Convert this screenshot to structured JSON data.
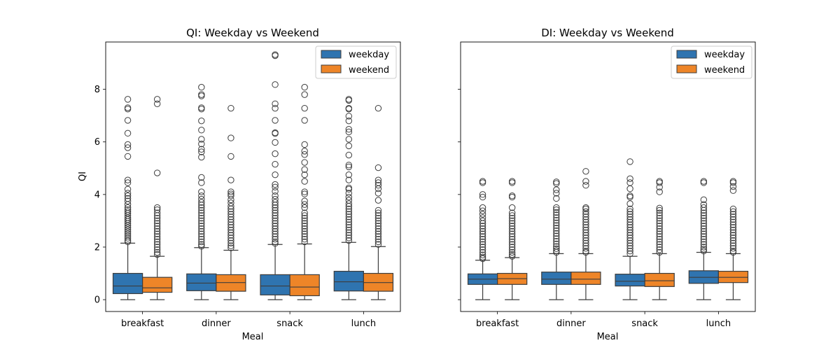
{
  "colors": {
    "weekday": "#2f74b0",
    "weekend": "#ee8528",
    "whisker": "#3d3d3d",
    "flier": "#3d3d3d"
  },
  "chart_data": [
    {
      "type": "box",
      "title": "QI: Weekday vs Weekend",
      "xlabel": "Meal",
      "ylabel": "QI",
      "ylim": [
        -0.45,
        9.8
      ],
      "yticks": [
        0,
        2,
        4,
        6,
        8
      ],
      "categories": [
        "breakfast",
        "dinner",
        "snack",
        "lunch"
      ],
      "legend": {
        "placement": "top-right",
        "entries": [
          "weekday",
          "weekend"
        ]
      },
      "series": [
        {
          "name": "weekday",
          "boxes": [
            {
              "min": 0.0,
              "q1": 0.23,
              "median": 0.52,
              "q3": 1.0,
              "whisker_high": 2.15,
              "fliers": [
                7.62,
                7.3,
                7.25,
                6.82,
                6.33,
                5.9,
                5.78,
                5.45,
                4.55,
                4.45,
                4.2,
                4.05,
                3.95,
                3.85,
                3.75,
                3.62,
                3.5,
                3.42,
                3.35,
                3.28,
                3.2,
                3.12,
                3.05,
                2.98,
                2.9,
                2.82,
                2.74,
                2.66,
                2.58,
                2.5,
                2.42,
                2.34,
                2.26,
                2.2
              ]
            },
            {
              "min": 0.0,
              "q1": 0.34,
              "median": 0.63,
              "q3": 0.98,
              "whisker_high": 1.98,
              "fliers": [
                8.08,
                7.8,
                7.75,
                7.3,
                7.25,
                6.8,
                6.45,
                6.1,
                5.92,
                5.72,
                5.62,
                5.42,
                4.65,
                4.45,
                4.1,
                3.95,
                3.82,
                3.7,
                3.6,
                3.5,
                3.4,
                3.3,
                3.2,
                3.1,
                3.0,
                2.9,
                2.8,
                2.7,
                2.6,
                2.5,
                2.4,
                2.3,
                2.2,
                2.1,
                2.03
              ]
            },
            {
              "min": 0.0,
              "q1": 0.18,
              "median": 0.52,
              "q3": 0.95,
              "whisker_high": 2.1,
              "fliers": [
                9.32,
                9.28,
                8.18,
                7.45,
                7.28,
                6.82,
                6.35,
                6.32,
                5.98,
                5.55,
                5.15,
                4.75,
                4.38,
                4.28,
                4.12,
                3.95,
                3.82,
                3.7,
                3.6,
                3.5,
                3.4,
                3.3,
                3.2,
                3.1,
                3.0,
                2.9,
                2.8,
                2.7,
                2.6,
                2.5,
                2.4,
                2.3,
                2.2,
                2.14
              ]
            },
            {
              "min": 0.0,
              "q1": 0.33,
              "median": 0.68,
              "q3": 1.08,
              "whisker_high": 2.18,
              "fliers": [
                7.62,
                7.58,
                7.28,
                7.25,
                6.98,
                6.8,
                6.48,
                6.38,
                6.1,
                5.85,
                5.5,
                5.12,
                5.05,
                4.75,
                4.55,
                4.25,
                4.2,
                4.05,
                3.9,
                3.78,
                3.65,
                3.55,
                3.45,
                3.35,
                3.25,
                3.15,
                3.05,
                2.95,
                2.85,
                2.75,
                2.65,
                2.55,
                2.45,
                2.35,
                2.25
              ]
            }
          ]
        },
        {
          "name": "weekend",
          "boxes": [
            {
              "min": 0.0,
              "q1": 0.28,
              "median": 0.45,
              "q3": 0.85,
              "whisker_high": 1.65,
              "fliers": [
                7.62,
                7.45,
                4.82,
                3.5,
                3.42,
                3.3,
                3.2,
                3.1,
                3.0,
                2.9,
                2.8,
                2.7,
                2.6,
                2.5,
                2.4,
                2.3,
                2.2,
                2.1,
                2.0,
                1.9,
                1.8,
                1.72
              ]
            },
            {
              "min": 0.0,
              "q1": 0.32,
              "median": 0.65,
              "q3": 0.95,
              "whisker_high": 1.88,
              "fliers": [
                7.28,
                6.15,
                5.45,
                4.55,
                4.1,
                4.02,
                3.95,
                3.8,
                3.68,
                3.55,
                3.45,
                3.35,
                3.25,
                3.15,
                3.05,
                2.95,
                2.85,
                2.75,
                2.65,
                2.55,
                2.45,
                2.35,
                2.25,
                2.15,
                2.05,
                1.97
              ]
            },
            {
              "min": 0.0,
              "q1": 0.15,
              "median": 0.48,
              "q3": 0.95,
              "whisker_high": 2.12,
              "fliers": [
                8.08,
                7.8,
                7.28,
                6.82,
                5.9,
                5.65,
                5.52,
                5.22,
                4.95,
                4.75,
                4.5,
                4.1,
                4.02,
                3.75,
                3.62,
                3.5,
                3.3,
                3.2,
                3.1,
                3.0,
                2.9,
                2.8,
                2.7,
                2.6,
                2.5,
                2.4,
                2.3,
                2.2
              ]
            },
            {
              "min": 0.0,
              "q1": 0.32,
              "median": 0.65,
              "q3": 1.0,
              "whisker_high": 2.02,
              "fliers": [
                7.28,
                5.02,
                4.55,
                4.45,
                4.35,
                4.22,
                4.05,
                3.78,
                3.4,
                3.3,
                3.2,
                3.1,
                3.0,
                2.9,
                2.8,
                2.7,
                2.6,
                2.5,
                2.4,
                2.3,
                2.2,
                2.1
              ]
            }
          ]
        }
      ]
    },
    {
      "type": "box",
      "title": "DI: Weekday vs Weekend",
      "xlabel": "Meal",
      "ylabel": "",
      "ylim": [
        -0.45,
        9.8
      ],
      "yticks": [
        0,
        2,
        4,
        6,
        8
      ],
      "categories": [
        "breakfast",
        "dinner",
        "snack",
        "lunch"
      ],
      "legend": {
        "placement": "top-right",
        "entries": [
          "weekday",
          "weekend"
        ]
      },
      "series": [
        {
          "name": "weekday",
          "boxes": [
            {
              "min": 0.0,
              "q1": 0.58,
              "median": 0.78,
              "q3": 0.98,
              "whisker_high": 1.5,
              "fliers": [
                4.5,
                4.45,
                4.0,
                3.9,
                3.5,
                3.38,
                3.25,
                3.12,
                3.0,
                2.9,
                2.8,
                2.7,
                2.6,
                2.5,
                2.4,
                2.3,
                2.2,
                2.1,
                2.0,
                1.9,
                1.8,
                1.7,
                1.62,
                1.56
              ]
            },
            {
              "min": 0.0,
              "q1": 0.58,
              "median": 0.78,
              "q3": 1.05,
              "whisker_high": 1.75,
              "fliers": [
                4.48,
                4.42,
                4.18,
                4.05,
                3.85,
                3.5,
                3.42,
                3.32,
                3.22,
                3.12,
                3.02,
                2.92,
                2.82,
                2.72,
                2.62,
                2.52,
                2.42,
                2.32,
                2.22,
                2.12,
                2.02,
                1.94,
                1.86,
                1.8
              ]
            },
            {
              "min": 0.0,
              "q1": 0.52,
              "median": 0.7,
              "q3": 0.97,
              "whisker_high": 1.65,
              "fliers": [
                5.25,
                4.6,
                4.45,
                4.22,
                3.95,
                3.9,
                3.65,
                3.45,
                3.35,
                3.25,
                3.15,
                3.05,
                2.95,
                2.85,
                2.75,
                2.65,
                2.55,
                2.45,
                2.35,
                2.25,
                2.15,
                2.05,
                1.95,
                1.85,
                1.75
              ]
            },
            {
              "min": 0.0,
              "q1": 0.62,
              "median": 0.85,
              "q3": 1.1,
              "whisker_high": 1.8,
              "fliers": [
                4.5,
                4.45,
                3.8,
                3.62,
                3.5,
                3.4,
                3.3,
                3.2,
                3.1,
                3.0,
                2.9,
                2.8,
                2.7,
                2.6,
                2.5,
                2.4,
                2.3,
                2.2,
                2.1,
                2.0,
                1.92,
                1.85
              ]
            }
          ]
        },
        {
          "name": "weekend",
          "boxes": [
            {
              "min": 0.0,
              "q1": 0.58,
              "median": 0.8,
              "q3": 1.0,
              "whisker_high": 1.6,
              "fliers": [
                4.5,
                4.45,
                3.95,
                3.9,
                3.5,
                3.3,
                3.2,
                3.1,
                3.0,
                2.9,
                2.8,
                2.7,
                2.6,
                2.5,
                2.4,
                2.3,
                2.2,
                2.1,
                2.0,
                1.9,
                1.8,
                1.72,
                1.65
              ]
            },
            {
              "min": 0.0,
              "q1": 0.58,
              "median": 0.78,
              "q3": 1.05,
              "whisker_high": 1.75,
              "fliers": [
                4.88,
                4.5,
                4.35,
                3.5,
                3.45,
                3.35,
                3.25,
                3.15,
                3.05,
                2.95,
                2.85,
                2.75,
                2.65,
                2.55,
                2.45,
                2.35,
                2.25,
                2.15,
                2.05,
                1.95,
                1.85,
                1.8
              ]
            },
            {
              "min": 0.0,
              "q1": 0.5,
              "median": 0.72,
              "q3": 1.0,
              "whisker_high": 1.75,
              "fliers": [
                4.5,
                4.45,
                4.28,
                4.1,
                3.48,
                3.4,
                3.3,
                3.2,
                3.1,
                3.0,
                2.9,
                2.8,
                2.7,
                2.6,
                2.5,
                2.4,
                2.3,
                2.2,
                2.1,
                2.0,
                1.9,
                1.8
              ]
            },
            {
              "min": 0.0,
              "q1": 0.65,
              "median": 0.85,
              "q3": 1.08,
              "whisker_high": 1.75,
              "fliers": [
                4.5,
                4.45,
                4.3,
                4.15,
                3.45,
                3.35,
                3.25,
                3.15,
                3.05,
                2.95,
                2.85,
                2.75,
                2.65,
                2.55,
                2.45,
                2.35,
                2.25,
                2.15,
                2.05,
                1.95,
                1.85,
                1.8
              ]
            }
          ]
        }
      ]
    }
  ]
}
